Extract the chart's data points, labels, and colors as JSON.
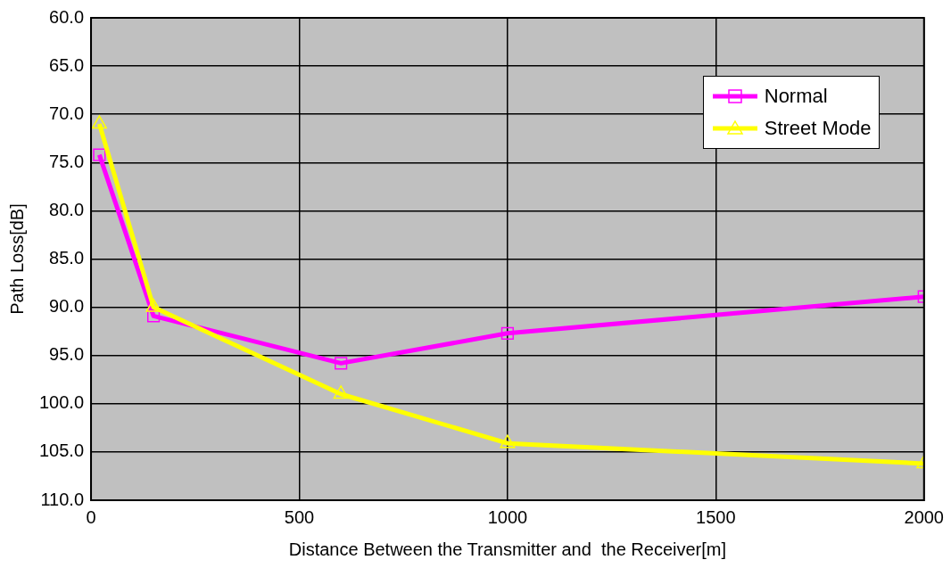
{
  "chart_data": {
    "type": "line",
    "xlabel": "Distance Between the Transmitter and  the Receiver[m]",
    "ylabel": "Path Loss[dB]",
    "x": [
      20,
      150,
      600,
      1000,
      2000
    ],
    "series": [
      {
        "name": "Normal",
        "color": "#ff00ff",
        "marker": "square",
        "values": [
          74.2,
          90.9,
          95.8,
          92.7,
          88.9
        ]
      },
      {
        "name": "Street Mode",
        "color": "#ffff00",
        "marker": "triangle",
        "values": [
          71.0,
          90.0,
          99.0,
          104.1,
          106.2
        ]
      }
    ],
    "xlim": [
      0,
      2000
    ],
    "xticks": [
      0,
      500,
      1000,
      1500,
      2000
    ],
    "ylim": [
      110,
      60
    ],
    "yticks": [
      {
        "value": 60,
        "label": "60.0"
      },
      {
        "value": 65,
        "label": "65.0"
      },
      {
        "value": 70,
        "label": "70.0"
      },
      {
        "value": 75,
        "label": "75.0"
      },
      {
        "value": 80,
        "label": "80.0"
      },
      {
        "value": 85,
        "label": "85.0"
      },
      {
        "value": 90,
        "label": "90.0"
      },
      {
        "value": 95,
        "label": "95.0"
      },
      {
        "value": 100,
        "label": "100.0"
      },
      {
        "value": 105,
        "label": "105.0"
      },
      {
        "value": 110,
        "label": "110.0"
      }
    ],
    "grid": true,
    "legend": "top right"
  }
}
